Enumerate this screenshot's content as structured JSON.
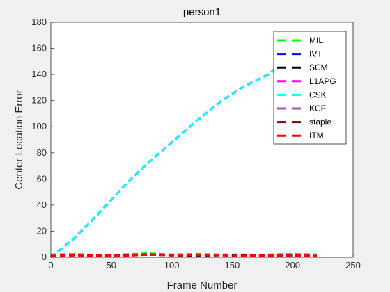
{
  "chart_data": {
    "type": "line",
    "title": "person1",
    "xlabel": "Frame Number",
    "ylabel": "Center Location Error",
    "xlim": [
      0,
      250
    ],
    "ylim": [
      0,
      180
    ],
    "xticks": [
      0,
      50,
      100,
      150,
      200,
      250
    ],
    "yticks": [
      0,
      20,
      40,
      60,
      80,
      100,
      120,
      140,
      160,
      180
    ],
    "grid": false,
    "legend_position": "top-right",
    "line_style": "dashed",
    "series": [
      {
        "name": "MIL",
        "color": "#00ff00",
        "x": [
          0,
          20,
          40,
          60,
          80,
          100,
          120,
          140,
          160,
          180,
          200,
          220
        ],
        "y": [
          2,
          2.5,
          1.5,
          2,
          3,
          2,
          2.5,
          2,
          1.5,
          2,
          2.5,
          2
        ]
      },
      {
        "name": "IVT",
        "color": "#0000ff",
        "x": [
          0,
          20,
          40,
          60,
          80,
          100,
          120,
          140,
          160,
          180,
          190
        ],
        "y": [
          0,
          15,
          34,
          54,
          72,
          88,
          104,
          119,
          131,
          140,
          148
        ]
      },
      {
        "name": "SCM",
        "color": "#000000",
        "x": [
          0,
          20,
          40,
          60,
          80,
          100,
          120,
          140,
          160,
          180,
          190
        ],
        "y": [
          0,
          15,
          34,
          54,
          72,
          88,
          104,
          119,
          131,
          140,
          147
        ]
      },
      {
        "name": "L1APG",
        "color": "#ff00ff",
        "x": [
          0,
          20,
          40,
          60,
          80,
          100,
          120,
          140,
          160,
          180,
          190
        ],
        "y": [
          0,
          15,
          34,
          54,
          72,
          88,
          104,
          119,
          131,
          140,
          148
        ]
      },
      {
        "name": "CSK",
        "color": "#00ffff",
        "x": [
          0,
          20,
          40,
          60,
          80,
          100,
          120,
          140,
          160,
          180,
          190
        ],
        "y": [
          0,
          15,
          34,
          54,
          72,
          88,
          104,
          119,
          131,
          140,
          147
        ]
      },
      {
        "name": "KCF",
        "color": "#9b59b6",
        "x": [
          0,
          20,
          40,
          60,
          80,
          100,
          120,
          140,
          160,
          180,
          200,
          220
        ],
        "y": [
          1.5,
          2,
          1.5,
          2,
          2.5,
          2,
          1.5,
          2,
          2,
          1.5,
          2,
          1.5
        ]
      },
      {
        "name": "staple",
        "color": "#800000",
        "x": [
          0,
          20,
          40,
          60,
          80,
          100,
          120,
          140,
          160,
          180,
          200,
          220
        ],
        "y": [
          1,
          1.5,
          1,
          1.5,
          2,
          1.5,
          1,
          1.5,
          1.5,
          1,
          1.5,
          1
        ]
      },
      {
        "name": "ITM",
        "color": "#ff0000",
        "x": [
          0,
          20,
          40,
          60,
          80,
          100,
          120,
          140,
          160,
          180,
          200,
          220
        ],
        "y": [
          1,
          1.5,
          1.5,
          1,
          2,
          1.5,
          2,
          1.5,
          1,
          1.5,
          1.5,
          1
        ]
      }
    ]
  }
}
